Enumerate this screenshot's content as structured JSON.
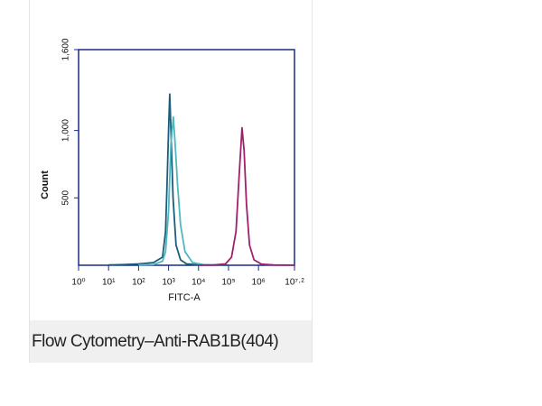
{
  "chart_data": {
    "type": "line",
    "x_label": "FITC-A",
    "y_label": "Count",
    "log_x": true,
    "xlim": [
      1,
      15848931.92
    ],
    "ylim": [
      0,
      1600
    ],
    "xticks": [
      {
        "value": 1,
        "label": "10⁰"
      },
      {
        "value": 10,
        "label": "10¹"
      },
      {
        "value": 100,
        "label": "10²"
      },
      {
        "value": 1000,
        "label": "10³"
      },
      {
        "value": 10000,
        "label": "10⁴"
      },
      {
        "value": 100000,
        "label": "10⁵"
      },
      {
        "value": 1000000,
        "label": "10⁶"
      },
      {
        "value": 15848931.92,
        "label": "10⁷·²"
      }
    ],
    "yticks": [
      500,
      {
        "value": 1000,
        "label": "1,000"
      },
      {
        "value": 1600,
        "label": "1,600"
      }
    ],
    "axis_color": "#1a2a8a",
    "series": [
      {
        "color": "#1b5e7a",
        "x": [
          10,
          32,
          100,
          316,
          631,
          794,
          891,
          1000,
          1096,
          1202,
          1413,
          1778,
          2512,
          3981,
          10000,
          100000
        ],
        "values": [
          2,
          5,
          10,
          20,
          60,
          250,
          600,
          1000,
          1270,
          1000,
          500,
          150,
          40,
          10,
          3,
          1
        ]
      },
      {
        "color": "#4fb8c0",
        "x": [
          100,
          316,
          631,
          794,
          1000,
          1202,
          1445,
          1660,
          1995,
          2512,
          3548,
          6310,
          15849
        ],
        "values": [
          2,
          5,
          30,
          100,
          400,
          900,
          1100,
          900,
          600,
          300,
          100,
          20,
          3
        ]
      },
      {
        "color": "#a0206e",
        "x": [
          10000,
          31623,
          79433,
          125893,
          177828,
          223872,
          281838,
          331131,
          398107,
          501187,
          707946,
          1258925,
          3162278,
          15000000
        ],
        "values": [
          1,
          2,
          10,
          60,
          250,
          650,
          1020,
          850,
          450,
          150,
          40,
          8,
          2,
          1
        ]
      }
    ]
  },
  "caption": "Flow Cytometry–Anti-RAB1B(404)"
}
